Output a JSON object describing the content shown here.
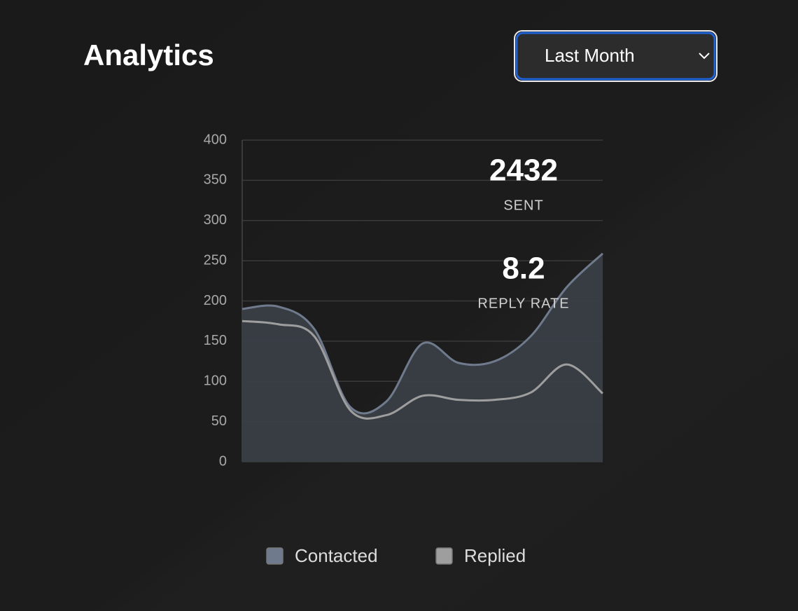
{
  "header": {
    "title": "Analytics",
    "period": "Last Month"
  },
  "stats": [
    {
      "value": 2432,
      "label": "SENT"
    },
    {
      "value": 8.2,
      "label": "REPLY RATE"
    }
  ],
  "chart_data": {
    "type": "area",
    "ylim": [
      0,
      400
    ],
    "yticks": [
      0,
      50,
      100,
      150,
      200,
      250,
      300,
      350,
      400
    ],
    "grid": true,
    "categories": [
      null,
      null,
      null,
      null,
      null,
      null,
      null,
      null,
      null,
      null,
      null
    ],
    "series": [
      {
        "name": "Contacted",
        "color": "#6f7a8c",
        "fill": "#3a3f47",
        "values": [
          190,
          193,
          165,
          68,
          75,
          147,
          123,
          125,
          156,
          217,
          259
        ]
      },
      {
        "name": "Replied",
        "color": "#9e9e9e",
        "values": [
          175,
          171,
          156,
          64,
          58,
          82,
          77,
          77,
          86,
          121,
          85
        ]
      }
    ]
  }
}
